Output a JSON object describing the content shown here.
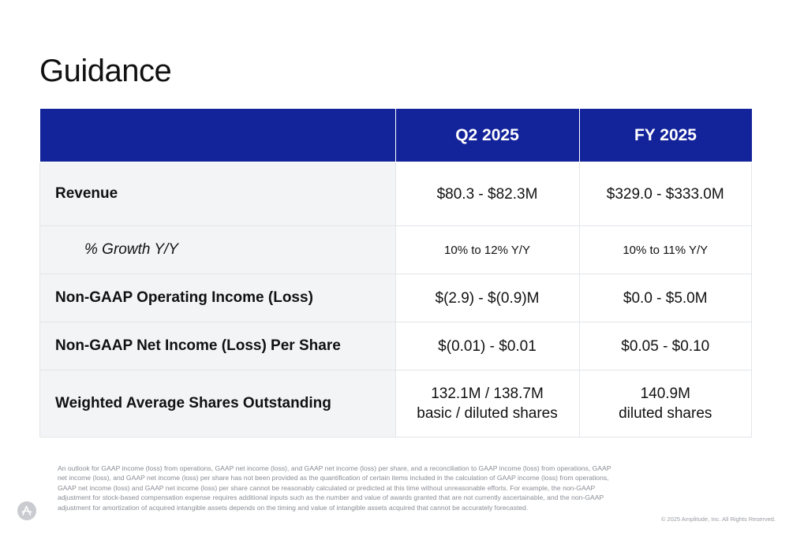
{
  "page": {
    "title": "Guidance"
  },
  "table": {
    "headers": [
      "",
      "Q2 2025",
      "FY 2025"
    ],
    "rows": [
      {
        "label": "Revenue",
        "q2": "$80.3 - $82.3M",
        "fy": "$329.0 - $333.0M"
      },
      {
        "label": "% Growth Y/Y",
        "q2": "10% to 12% Y/Y",
        "fy": "10% to 11% Y/Y"
      },
      {
        "label": "Non-GAAP Operating Income (Loss)",
        "q2": "$(2.9) - $(0.9)M",
        "fy": "$0.0 - $5.0M"
      },
      {
        "label": "Non-GAAP Net Income (Loss) Per Share",
        "q2": "$(0.01) - $0.01",
        "fy": "$0.05 - $0.10"
      },
      {
        "label": "Weighted Average Shares Outstanding",
        "q2": "132.1M / 138.7M",
        "q2_line2": "basic / diluted shares",
        "fy": "140.9M",
        "fy_line2": "diluted shares"
      }
    ]
  },
  "footnote": "An outlook for GAAP income (loss) from operations, GAAP net income (loss), and GAAP net income (loss) per share, and a reconciliation to GAAP income (loss) from operations, GAAP net income (loss), and GAAP net income (loss) per share has not been provided as the quantification of certain items included in the calculation of GAAP income (loss) from operations, GAAP net income (loss) and GAAP net income (loss) per share cannot be reasonably calculated or predicted at this time without unreasonable efforts. For example, the non-GAAP adjustment for stock-based compensation expense requires additional inputs such as the number and value of awards granted that are not currently ascertainable, and the non-GAAP adjustment for amortization of acquired intangible assets depends on the timing and value of intangible assets acquired that cannot be accurately forecasted.",
  "copyright": "© 2025 Amplitude, Inc. All Rights Reserved.",
  "colors": {
    "header_bg": "#13239a",
    "label_bg": "#f3f4f6",
    "footnote": "#8a8d93"
  },
  "icons": {
    "logo": "amplitude-logo-icon"
  }
}
